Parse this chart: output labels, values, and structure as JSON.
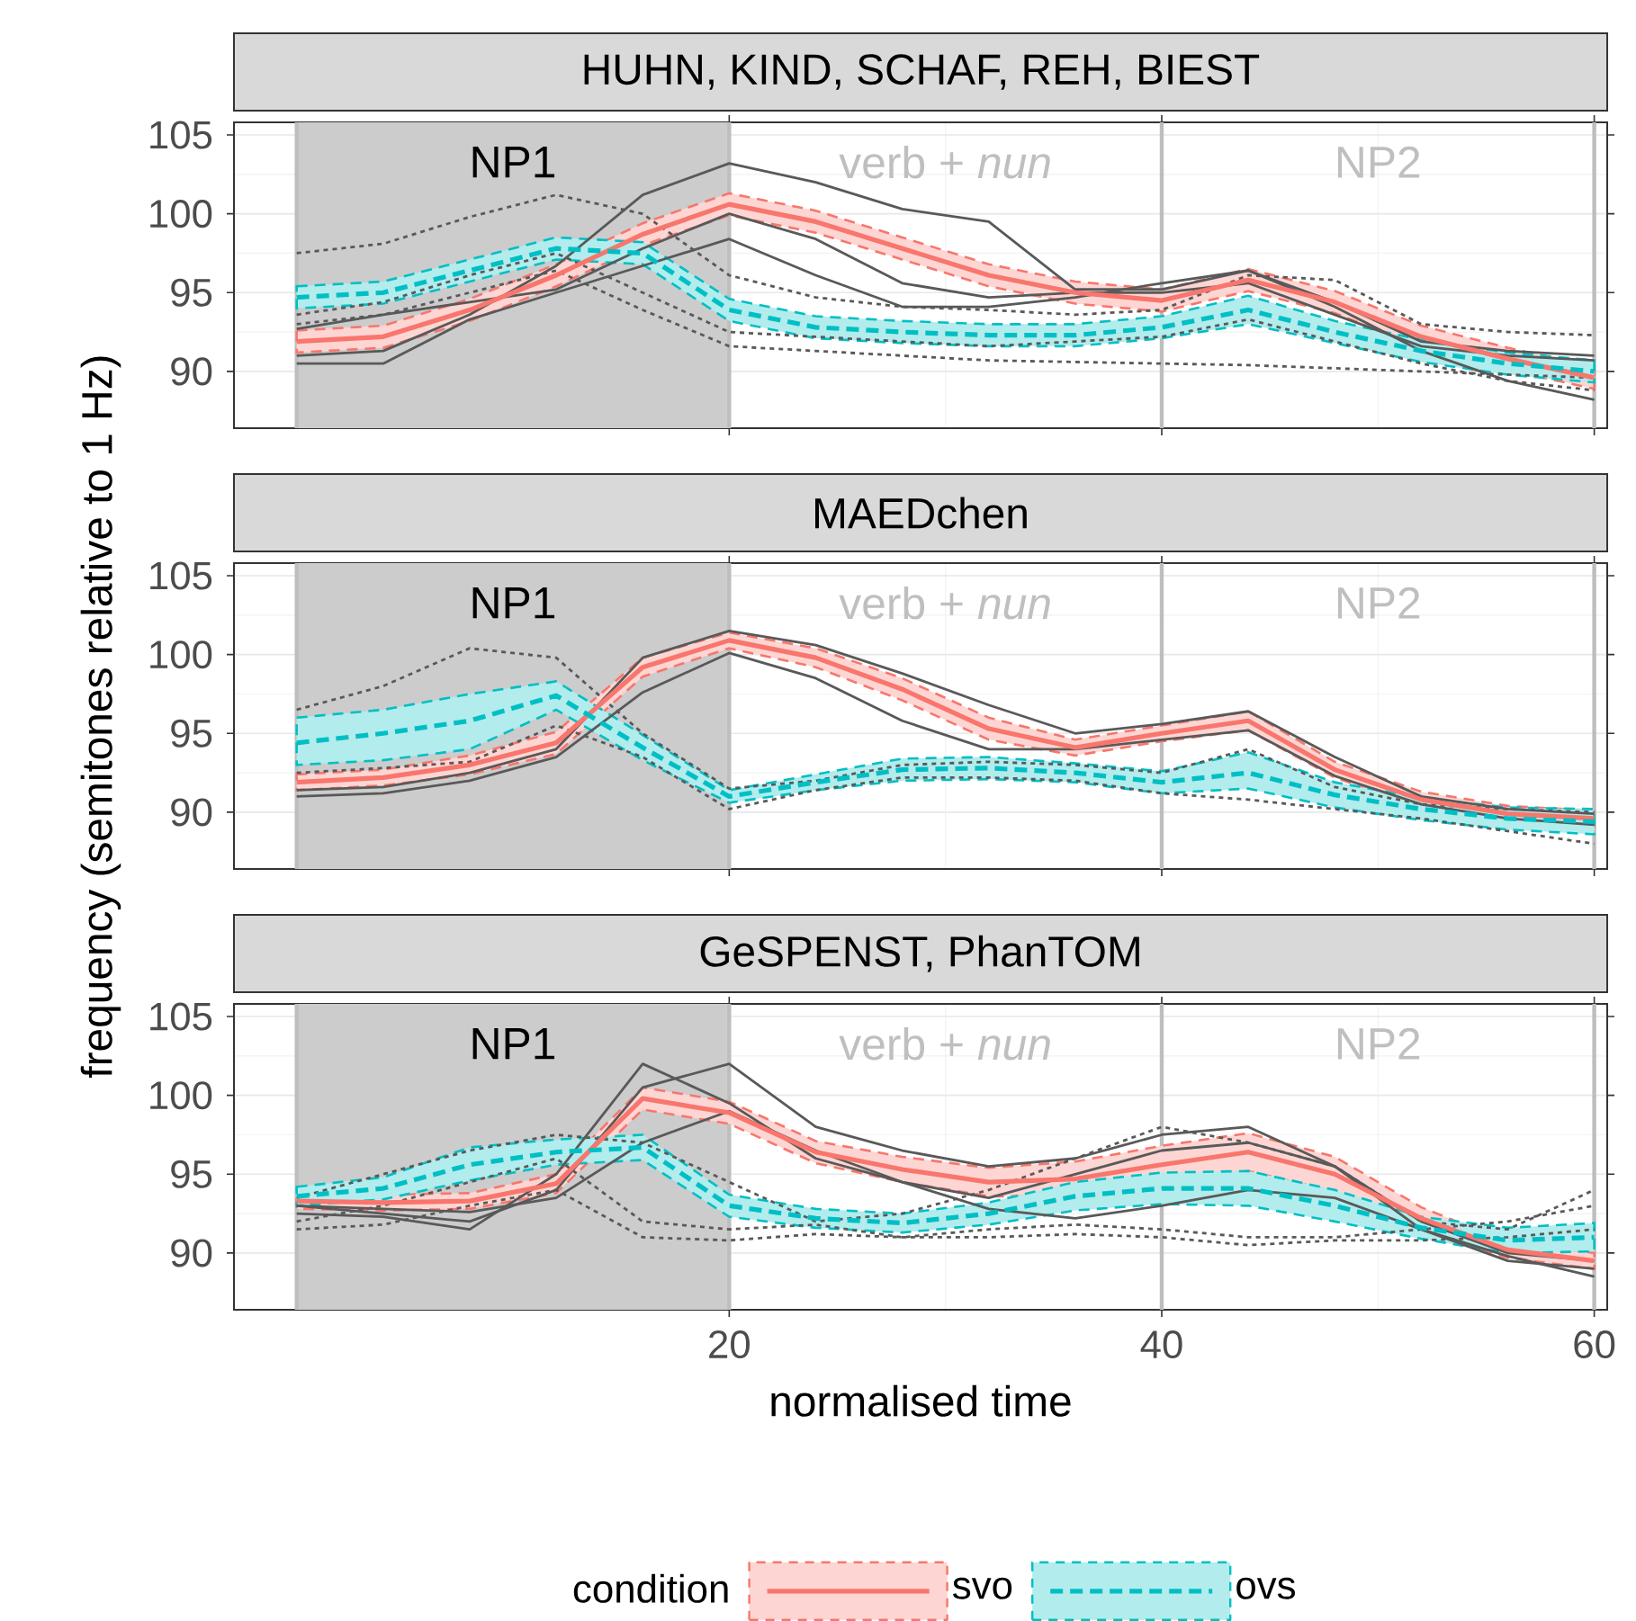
{
  "chart_data": [
    {
      "type": "line",
      "title": "HUHN, KIND, SCHAF, REH, BIEST",
      "x": [
        0,
        4,
        8,
        12,
        16,
        20,
        24,
        28,
        32,
        36,
        40,
        44,
        48,
        52,
        56,
        60
      ],
      "series": [
        {
          "color": "#f8766d",
          "line_style": "solid",
          "values": [
            91.9,
            92.2,
            93.9,
            96.1,
            98.7,
            100.6,
            99.5,
            97.8,
            96.1,
            95.0,
            94.5,
            95.8,
            94.4,
            92.2,
            90.8,
            89.6
          ],
          "lower": [
            91.2,
            91.5,
            93.2,
            95.4,
            98.0,
            99.9,
            98.8,
            97.1,
            95.4,
            94.3,
            93.8,
            95.1,
            93.7,
            91.5,
            90.1,
            88.9
          ],
          "upper": [
            92.6,
            92.9,
            94.6,
            96.8,
            99.4,
            101.3,
            100.2,
            98.5,
            96.8,
            95.7,
            95.2,
            96.5,
            95.1,
            92.9,
            91.5,
            90.3
          ]
        },
        {
          "color": "#00bfc4",
          "line_style": "dashed",
          "values": [
            94.7,
            95.0,
            96.4,
            97.8,
            97.5,
            93.9,
            92.8,
            92.5,
            92.3,
            92.3,
            92.8,
            93.9,
            92.5,
            91.3,
            90.5,
            90.0
          ],
          "lower": [
            94.0,
            94.3,
            95.7,
            97.1,
            96.8,
            93.2,
            92.1,
            91.8,
            91.6,
            91.6,
            92.1,
            93.0,
            91.8,
            90.6,
            89.8,
            89.3
          ],
          "upper": [
            95.4,
            95.7,
            97.1,
            98.5,
            98.2,
            94.6,
            93.5,
            93.2,
            93.0,
            93.0,
            93.5,
            94.8,
            93.2,
            92.0,
            91.2,
            90.7
          ]
        },
        {
          "color": "#595959",
          "line_style": "solid",
          "values": [
            91.0,
            91.3,
            93.6,
            96.7,
            101.2,
            103.2,
            102.0,
            100.3,
            99.5,
            95.2,
            95.2,
            96.4,
            94.4,
            91.9,
            91.3,
            91.0
          ]
        },
        {
          "color": "#595959",
          "line_style": "solid",
          "values": [
            90.5,
            90.5,
            93.3,
            95.0,
            96.7,
            98.4,
            96.1,
            94.1,
            94.1,
            94.7,
            95.6,
            96.4,
            94.1,
            91.3,
            89.4,
            88.2
          ]
        },
        {
          "color": "#595959",
          "line_style": "solid",
          "values": [
            92.7,
            93.6,
            94.4,
            95.2,
            97.8,
            100.0,
            98.4,
            95.6,
            94.7,
            95.0,
            95.0,
            95.6,
            93.6,
            91.6,
            91.0,
            90.7
          ]
        },
        {
          "color": "#595959",
          "line_style": "dotted",
          "values": [
            97.5,
            98.1,
            99.8,
            101.2,
            100.0,
            96.1,
            94.7,
            94.1,
            93.9,
            93.6,
            93.9,
            96.1,
            95.8,
            93.0,
            92.5,
            92.3
          ]
        },
        {
          "color": "#595959",
          "line_style": "dotted",
          "values": [
            93.6,
            94.4,
            96.1,
            97.5,
            95.0,
            92.5,
            92.2,
            91.9,
            91.6,
            91.9,
            92.2,
            93.3,
            91.9,
            90.5,
            89.4,
            88.8
          ]
        },
        {
          "color": "#595959",
          "line_style": "dotted",
          "values": [
            93.0,
            93.6,
            95.0,
            96.4,
            93.9,
            91.6,
            91.3,
            91.0,
            90.7,
            90.6,
            90.5,
            90.4,
            90.2,
            90.0,
            89.8,
            89.6
          ]
        }
      ],
      "xlim": [
        -2.9,
        60.6
      ],
      "xticks": [
        20,
        40,
        60
      ],
      "ylim": [
        86.4,
        105.8
      ],
      "yticks": [
        90,
        95,
        100,
        105
      ],
      "grid": true,
      "tick_labels": "y",
      "bands": [
        {
          "axis": "x",
          "from": 0,
          "to": 20,
          "label": "NP1",
          "color": "#cccccc"
        }
      ],
      "annotations": [
        "verb + *nun*",
        "NP2"
      ],
      "ref_lines": [
        {
          "axis": "x",
          "value": 0,
          "color": "#bebebe"
        },
        {
          "axis": "x",
          "value": 20,
          "color": "#bebebe"
        },
        {
          "axis": "x",
          "value": 40,
          "color": "#bebebe"
        },
        {
          "axis": "x",
          "value": 60,
          "color": "#bebebe"
        }
      ]
    },
    {
      "type": "line",
      "title": "MAEDchen",
      "ylabel": "frequency (semitones relative to 1 Hz)",
      "x": [
        0,
        4,
        8,
        12,
        16,
        20,
        24,
        28,
        32,
        36,
        40,
        44,
        48,
        52,
        56,
        60
      ],
      "series": [
        {
          "color": "#f8766d",
          "line_style": "solid",
          "values": [
            91.9,
            92.2,
            93.0,
            94.4,
            99.2,
            100.9,
            99.8,
            97.8,
            95.3,
            94.1,
            95.0,
            95.8,
            92.7,
            90.8,
            89.9,
            89.6
          ],
          "lower": [
            91.4,
            91.7,
            92.4,
            93.7,
            98.6,
            100.4,
            99.2,
            97.1,
            94.6,
            93.6,
            94.5,
            95.2,
            92.2,
            90.3,
            89.4,
            89.1
          ],
          "upper": [
            92.4,
            92.7,
            93.6,
            95.1,
            99.8,
            101.4,
            100.4,
            98.5,
            96.0,
            94.6,
            95.5,
            96.4,
            93.2,
            91.3,
            90.4,
            90.1
          ]
        },
        {
          "color": "#00bfc4",
          "line_style": "dashed",
          "values": [
            94.4,
            95.0,
            95.8,
            97.4,
            94.1,
            91.0,
            91.9,
            92.7,
            92.8,
            92.5,
            91.9,
            92.5,
            91.1,
            90.2,
            89.6,
            89.4
          ],
          "lower": [
            93.0,
            93.3,
            94.0,
            96.5,
            93.3,
            90.6,
            91.4,
            92.0,
            92.1,
            91.9,
            91.2,
            91.5,
            90.3,
            89.5,
            88.9,
            88.6
          ],
          "upper": [
            96.0,
            96.5,
            97.5,
            98.3,
            94.9,
            91.4,
            92.4,
            93.4,
            93.5,
            93.1,
            92.6,
            93.8,
            91.9,
            90.9,
            90.3,
            90.2
          ]
        },
        {
          "color": "#595959",
          "line_style": "solid",
          "values": [
            91.4,
            91.6,
            92.5,
            94.0,
            99.8,
            101.5,
            100.6,
            98.8,
            96.8,
            95.0,
            95.6,
            96.4,
            93.5,
            91.0,
            90.2,
            89.9
          ]
        },
        {
          "color": "#595959",
          "line_style": "solid",
          "values": [
            91.0,
            91.2,
            92.0,
            93.5,
            97.6,
            100.1,
            98.5,
            95.8,
            94.0,
            94.0,
            94.6,
            95.2,
            92.3,
            90.5,
            89.6,
            89.2
          ]
        },
        {
          "color": "#595959",
          "line_style": "dotted",
          "values": [
            96.5,
            98.0,
            100.4,
            99.8,
            95.0,
            91.5,
            92.0,
            93.0,
            93.2,
            93.0,
            92.5,
            94.0,
            91.6,
            90.5,
            90.2,
            90.0
          ]
        },
        {
          "color": "#595959",
          "line_style": "dotted",
          "values": [
            92.5,
            92.8,
            93.2,
            95.5,
            93.5,
            90.2,
            91.4,
            92.2,
            92.2,
            92.0,
            91.2,
            90.8,
            90.2,
            89.6,
            88.8,
            88.0
          ]
        }
      ],
      "xlim": [
        -2.9,
        60.6
      ],
      "xticks": [
        20,
        40,
        60
      ],
      "ylim": [
        86.4,
        105.8
      ],
      "yticks": [
        90,
        95,
        100,
        105
      ],
      "grid": true,
      "tick_labels": "y",
      "bands": [
        {
          "axis": "x",
          "from": 0,
          "to": 20,
          "label": "NP1",
          "color": "#cccccc"
        }
      ],
      "annotations": [
        "verb + *nun*",
        "NP2"
      ],
      "ref_lines": [
        {
          "axis": "x",
          "value": 0,
          "color": "#bebebe"
        },
        {
          "axis": "x",
          "value": 20,
          "color": "#bebebe"
        },
        {
          "axis": "x",
          "value": 40,
          "color": "#bebebe"
        },
        {
          "axis": "x",
          "value": 60,
          "color": "#bebebe"
        }
      ]
    },
    {
      "type": "line",
      "title": "GeSPENST, PhanTOM",
      "xlabel": "normalised time",
      "legend": "bottom",
      "legend_title": "condition",
      "x": [
        0,
        4,
        8,
        12,
        16,
        20,
        24,
        28,
        32,
        36,
        40,
        44,
        48,
        52,
        56,
        60
      ],
      "series": [
        {
          "name": "svo",
          "color": "#f8766d",
          "line_style": "solid",
          "values": [
            93.3,
            93.2,
            93.3,
            94.4,
            99.8,
            98.9,
            96.4,
            95.3,
            94.5,
            94.7,
            95.6,
            96.4,
            95.0,
            92.2,
            90.2,
            89.5
          ],
          "lower": [
            92.8,
            92.7,
            92.8,
            93.8,
            99.1,
            98.2,
            95.7,
            94.5,
            93.6,
            93.6,
            94.4,
            95.2,
            93.9,
            91.5,
            89.7,
            89.0
          ],
          "upper": [
            93.8,
            93.7,
            93.8,
            95.0,
            100.5,
            99.6,
            97.1,
            96.1,
            95.4,
            95.8,
            96.8,
            97.6,
            96.1,
            92.9,
            90.7,
            90.0
          ]
        },
        {
          "name": "ovs",
          "color": "#00bfc4",
          "line_style": "dashed",
          "values": [
            93.6,
            94.1,
            95.6,
            96.4,
            96.7,
            93.0,
            92.2,
            91.9,
            92.5,
            93.6,
            94.1,
            94.1,
            93.0,
            91.6,
            90.8,
            91.0
          ],
          "lower": [
            93.0,
            93.4,
            94.6,
            95.6,
            95.9,
            92.3,
            91.6,
            91.3,
            91.8,
            92.7,
            93.1,
            93.0,
            92.0,
            90.9,
            90.0,
            90.1
          ],
          "upper": [
            94.2,
            94.8,
            96.7,
            97.2,
            97.5,
            93.7,
            92.8,
            92.5,
            93.2,
            94.5,
            95.1,
            95.2,
            94.0,
            92.3,
            91.6,
            91.9
          ]
        },
        {
          "color": "#595959",
          "line_style": "solid",
          "values": [
            93.0,
            92.5,
            92.0,
            94.0,
            100.5,
            102.0,
            98.0,
            96.5,
            95.5,
            96.0,
            97.5,
            98.0,
            95.5,
            91.5,
            89.5,
            89.0
          ]
        },
        {
          "color": "#595959",
          "line_style": "solid",
          "values": [
            92.5,
            92.3,
            91.5,
            95.0,
            102.0,
            99.5,
            96.0,
            94.5,
            93.5,
            95.0,
            96.5,
            97.0,
            95.5,
            92.0,
            90.0,
            89.5
          ]
        },
        {
          "color": "#595959",
          "line_style": "solid",
          "values": [
            93.0,
            92.8,
            92.6,
            93.5,
            97.0,
            99.0,
            96.5,
            94.5,
            92.8,
            92.2,
            93.0,
            94.0,
            93.5,
            91.5,
            89.8,
            88.5
          ]
        },
        {
          "color": "#595959",
          "line_style": "dotted",
          "values": [
            93.5,
            95.0,
            96.5,
            97.5,
            97.0,
            94.5,
            92.0,
            92.5,
            94.0,
            96.0,
            98.0,
            97.0,
            95.5,
            92.0,
            91.5,
            94.0
          ]
        },
        {
          "color": "#595959",
          "line_style": "dotted",
          "values": [
            92.0,
            93.0,
            94.5,
            96.0,
            92.0,
            91.5,
            91.8,
            91.0,
            91.5,
            91.8,
            91.5,
            91.0,
            91.0,
            91.5,
            92.0,
            93.0
          ]
        },
        {
          "color": "#595959",
          "line_style": "dotted",
          "values": [
            91.5,
            91.8,
            93.0,
            94.0,
            91.0,
            90.8,
            91.2,
            91.0,
            91.0,
            91.2,
            91.0,
            90.5,
            90.8,
            90.8,
            91.0,
            91.5
          ]
        }
      ],
      "xlim": [
        -2.9,
        60.6
      ],
      "xticks": [
        20,
        40,
        60
      ],
      "ylim": [
        86.4,
        105.8
      ],
      "yticks": [
        90,
        95,
        100,
        105
      ],
      "grid": true,
      "bands": [
        {
          "axis": "x",
          "from": 0,
          "to": 20,
          "label": "NP1",
          "color": "#cccccc"
        }
      ],
      "annotations": [
        "verb + *nun*",
        "NP2"
      ],
      "ref_lines": [
        {
          "axis": "x",
          "value": 0,
          "color": "#bebebe"
        },
        {
          "axis": "x",
          "value": 20,
          "color": "#bebebe"
        },
        {
          "axis": "x",
          "value": 40,
          "color": "#bebebe"
        },
        {
          "axis": "x",
          "value": 60,
          "color": "#bebebe"
        }
      ]
    }
  ]
}
